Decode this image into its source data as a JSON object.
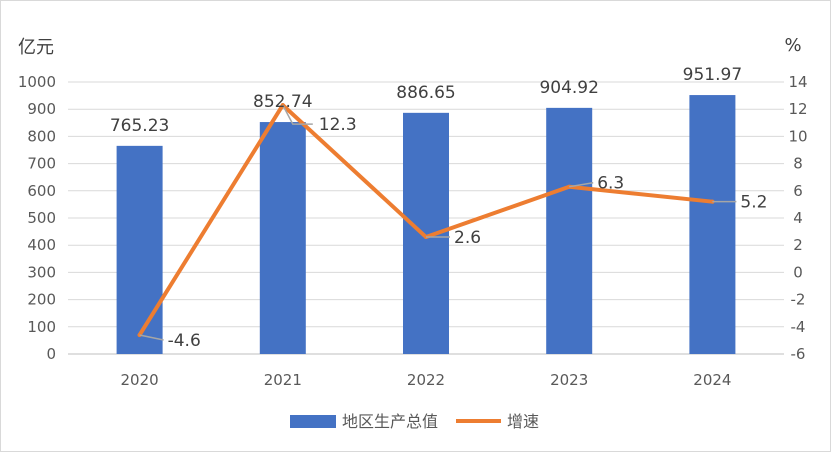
{
  "chart_data": {
    "type": "bar",
    "categories": [
      "2020",
      "2021",
      "2022",
      "2023",
      "2024"
    ],
    "series": [
      {
        "name": "地区生产总值",
        "type": "bar",
        "axis": "left",
        "color": "#4472C4",
        "values": [
          765.23,
          852.74,
          886.65,
          904.92,
          951.97
        ],
        "labels": [
          "765.23",
          "852.74",
          "886.65",
          "904.92",
          "951.97"
        ]
      },
      {
        "name": "增速",
        "type": "line",
        "axis": "right",
        "color": "#ED7D31",
        "values": [
          -4.6,
          12.3,
          2.6,
          6.3,
          5.2
        ],
        "labels": [
          "-4.6",
          "12.3",
          "2.6",
          "6.3",
          "5.2"
        ]
      }
    ],
    "y_left": {
      "unit": "亿元",
      "min": 0,
      "max": 1000,
      "step": 100
    },
    "y_right": {
      "unit": "%",
      "min": -6,
      "max": 14,
      "step": 2
    },
    "grid": true,
    "legend_position": "bottom"
  }
}
